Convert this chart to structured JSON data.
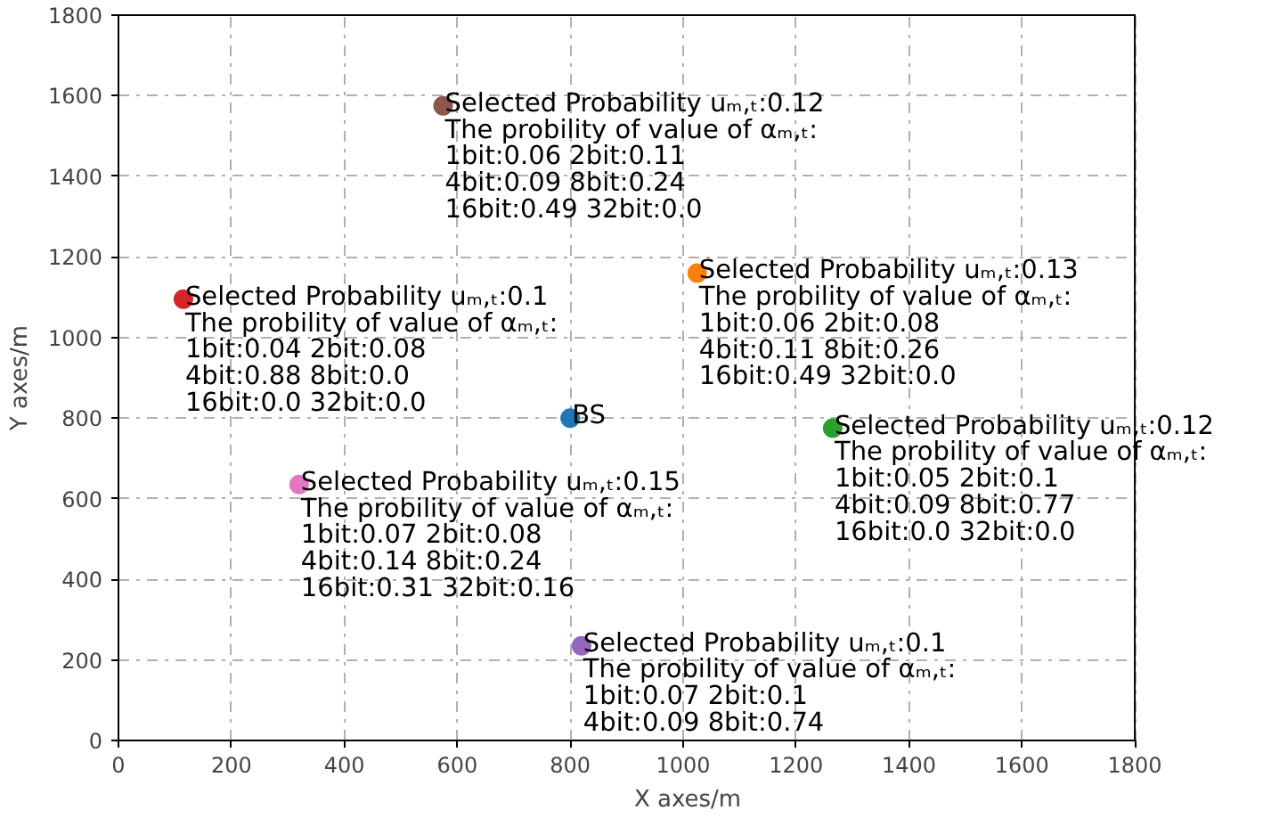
{
  "chart_data": {
    "type": "scatter",
    "xlabel": "X axes/m",
    "ylabel": "Y axes/m",
    "xlim": [
      0,
      1800
    ],
    "ylim": [
      0,
      1800
    ],
    "xticks": [
      0,
      200,
      400,
      600,
      800,
      1000,
      1200,
      1400,
      1600,
      1800
    ],
    "yticks": [
      0,
      200,
      400,
      600,
      800,
      1000,
      1200,
      1400,
      1600,
      1800
    ],
    "grid": true,
    "marker": "circle",
    "series": [
      {
        "color": "#1f77b4",
        "x": [
          800
        ],
        "values": [
          800
        ]
      },
      {
        "color": "#ff7f0e",
        "x": [
          1025
        ],
        "values": [
          1160
        ]
      },
      {
        "color": "#2ca02c",
        "x": [
          1265
        ],
        "values": [
          775
        ]
      },
      {
        "color": "#d62728",
        "x": [
          115
        ],
        "values": [
          1095
        ]
      },
      {
        "color": "#9467bd",
        "x": [
          820
        ],
        "values": [
          235
        ]
      },
      {
        "color": "#8c564b",
        "x": [
          575
        ],
        "values": [
          1575
        ]
      },
      {
        "color": "#e377c2",
        "x": [
          320
        ],
        "values": [
          635
        ]
      }
    ],
    "annotations": [
      {
        "text": "BS",
        "x": 800,
        "y": 800
      },
      {
        "text": "Selected Probability uₘ,ₜ:0.13\nThe probility of value of αₘ,ₜ:\n1bit:0.06     2bit:0.08\n4bit:0.11     8bit:0.26\n16bit:0.49    32bit:0.0",
        "x": 1025,
        "y": 1160
      },
      {
        "text": "Selected Probability uₘ,ₜ:0.12\nThe probility of value of αₘ,ₜ:\n1bit:0.05     2bit:0.1\n4bit:0.09     8bit:0.77\n16bit:0.0     32bit:0.0",
        "x": 1265,
        "y": 775
      },
      {
        "text": "Selected Probability uₘ,ₜ:0.1\nThe probility of value of αₘ,ₜ:\n1bit:0.04     2bit:0.08\n4bit:0.88     8bit:0.0\n16bit:0.0     32bit:0.0",
        "x": 115,
        "y": 1095
      },
      {
        "text": "Selected Probability uₘ,ₜ:0.1\nThe probility of value of αₘ,ₜ:\n1bit:0.07     2bit:0.1\n4bit:0.09     8bit:0.74",
        "x": 820,
        "y": 235
      },
      {
        "text": "Selected Probability uₘ,ₜ:0.12\nThe probility of value of αₘ,ₜ:\n1bit:0.06     2bit:0.11\n4bit:0.09     8bit:0.24\n16bit:0.49    32bit:0.0",
        "x": 575,
        "y": 1575
      },
      {
        "text": "Selected Probability uₘ,ₜ:0.15\nThe probility of value of αₘ,ₜ:\n1bit:0.07     2bit:0.08\n4bit:0.14     8bit:0.24\n16bit:0.31    32bit:0.16",
        "x": 320,
        "y": 635
      }
    ]
  }
}
